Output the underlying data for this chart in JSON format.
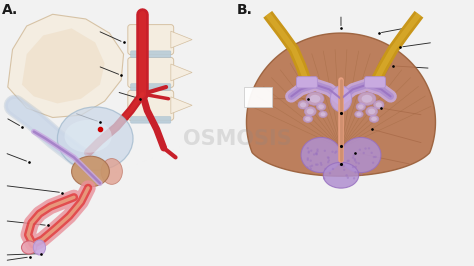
{
  "background_color": "#f2f2f2",
  "label_A": "A.",
  "label_B": "B.",
  "watermark": "OSMOSIS",
  "fig_width": 4.74,
  "fig_height": 2.66,
  "colors": {
    "bone_light": "#f5ede0",
    "bone_mid": "#ead5b8",
    "bone_shadow": "#d4bfa0",
    "artery_red": "#c8202a",
    "artery_bright": "#e03030",
    "vein_blue": "#a8bfd0",
    "vein_purple": "#b8a8d0",
    "bladder_blue": "#ccd8e8",
    "bladder_edge": "#a0b8cc",
    "prostate_brown": "#c8956a",
    "prostate_dark": "#a87050",
    "penis_outer": "#e8909a",
    "penis_inner": "#d06070",
    "urethra_peach": "#e8a080",
    "lavender_light": "#c8aae0",
    "lavender_mid": "#b090d0",
    "lavender_dark": "#9870c0",
    "muscle_brown": "#b87550",
    "muscle_dark": "#9a5f3a",
    "muscle_stripe": "#a06840",
    "tube_yellow": "#c8961a",
    "tube_yellow_hi": "#ddb030",
    "spine_blue": "#b8ccd8",
    "nerve_blue": "#c0d0e8",
    "pink_sac": "#e89099",
    "line_dark": "#2a2a2a",
    "white": "#ffffff",
    "peach": "#f0b890",
    "seminal_pink": "#e8a0b0"
  }
}
